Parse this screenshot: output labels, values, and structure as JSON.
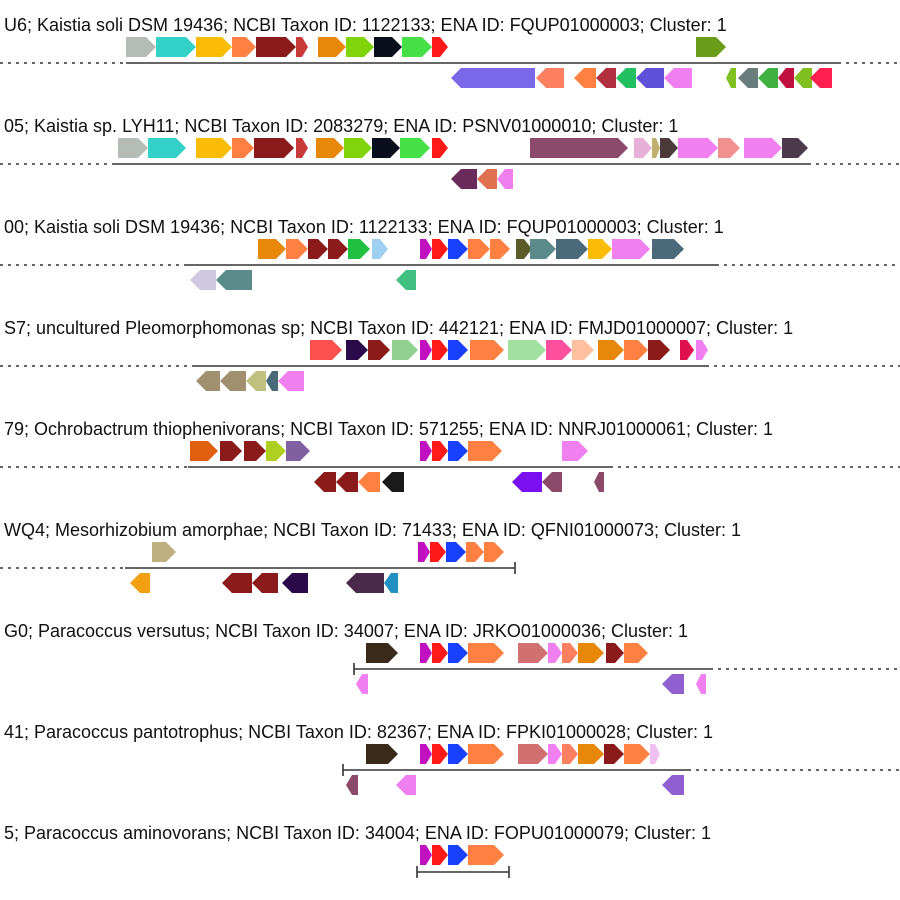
{
  "tracks": [
    {
      "label": "U6; Kaistia soli DSM 19436; NCBI Taxon ID: 1122133; ENA ID: FQUP01000003; Cluster: 1",
      "genes_top": [
        {
          "color": "#b5bcb5",
          "dir": "+",
          "label": ""
        },
        {
          "color": "#33d1c7",
          "dir": "+",
          "label": ""
        },
        {
          "color": "#fbbc05",
          "dir": "+",
          "label": ""
        },
        {
          "color": "#ff8040",
          "dir": "+",
          "label": ""
        },
        {
          "color": "#8b1a1a",
          "dir": "+",
          "label": ""
        },
        {
          "color": "#c83a3a",
          "dir": "+",
          "label": ""
        },
        {
          "color": "#e8880a",
          "dir": "+",
          "label": ""
        },
        {
          "color": "#7fd40a",
          "dir": "+",
          "label": ""
        },
        {
          "color": "#0a0f1e",
          "dir": "+",
          "label": ""
        },
        {
          "color": "#46e046",
          "dir": "+",
          "label": ""
        },
        {
          "color": "#ff1a1a",
          "dir": "+",
          "label": ""
        },
        {
          "color": "#6a9e1a",
          "dir": "+",
          "label": ""
        }
      ],
      "genes_bottom": [
        {
          "color": "#7a68e8",
          "dir": "-",
          "label": ""
        },
        {
          "color": "#ff8060",
          "dir": "-",
          "label": ""
        },
        {
          "color": "#ff8040",
          "dir": "-",
          "label": ""
        },
        {
          "color": "#b03040",
          "dir": "-",
          "label": ""
        },
        {
          "color": "#22c060",
          "dir": "-",
          "label": ""
        },
        {
          "color": "#6050d8",
          "dir": "-",
          "label": ""
        },
        {
          "color": "#f080f0",
          "dir": "-",
          "label": ""
        },
        {
          "color": "#80c020",
          "dir": "-",
          "label": ""
        },
        {
          "color": "#6a7d7d",
          "dir": "-",
          "label": ""
        },
        {
          "color": "#40b040",
          "dir": "-",
          "label": ""
        },
        {
          "color": "#c01040",
          "dir": "-",
          "label": ""
        },
        {
          "color": "#80c020",
          "dir": "-",
          "label": ""
        },
        {
          "color": "#ff2050",
          "dir": "-",
          "label": ""
        }
      ]
    },
    {
      "label": "05; Kaistia sp. LYH11; NCBI Taxon ID: 2083279; ENA ID: PSNV01000010; Cluster: 1",
      "genes_top": [
        {
          "color": "#b5bcb5",
          "dir": "+",
          "label": ""
        },
        {
          "color": "#33d1c7",
          "dir": "+",
          "label": ""
        },
        {
          "color": "#fbbc05",
          "dir": "+",
          "label": ""
        },
        {
          "color": "#ff8040",
          "dir": "+",
          "label": ""
        },
        {
          "color": "#8b1a1a",
          "dir": "+",
          "label": ""
        },
        {
          "color": "#c83a3a",
          "dir": "+",
          "label": ""
        },
        {
          "color": "#e8880a",
          "dir": "+",
          "label": ""
        },
        {
          "color": "#7fd40a",
          "dir": "+",
          "label": ""
        },
        {
          "color": "#0a0f1e",
          "dir": "+",
          "label": ""
        },
        {
          "color": "#46e046",
          "dir": "+",
          "label": ""
        },
        {
          "color": "#ff1a1a",
          "dir": "+",
          "label": ""
        },
        {
          "color": "#8b4a6a",
          "dir": "+",
          "label": ""
        },
        {
          "color": "#e8b0d8",
          "dir": "+",
          "label": ""
        },
        {
          "color": "#c0b070",
          "dir": "+",
          "label": ""
        },
        {
          "color": "#4a3a3a",
          "dir": "+",
          "label": ""
        },
        {
          "color": "#f080f0",
          "dir": "+",
          "label": ""
        },
        {
          "color": "#f09090",
          "dir": "+",
          "label": ""
        },
        {
          "color": "#f080f0",
          "dir": "+",
          "label": ""
        },
        {
          "color": "#4a3a4a",
          "dir": "+",
          "label": ""
        }
      ],
      "genes_bottom": [
        {
          "color": "#6a2a5a",
          "dir": "-",
          "label": ""
        },
        {
          "color": "#e07050",
          "dir": "-",
          "label": ""
        },
        {
          "color": "#f080f0",
          "dir": "-",
          "label": ""
        }
      ]
    },
    {
      "label": "00; Kaistia soli DSM 19436; NCBI Taxon ID: 1122133; ENA ID: FQUP01000003; Cluster: 1",
      "genes_top": [
        {
          "color": "#e8880a",
          "dir": "+",
          "label": ""
        },
        {
          "color": "#ff8040",
          "dir": "+",
          "label": ""
        },
        {
          "color": "#8b1a1a",
          "dir": "+",
          "label": ""
        },
        {
          "color": "#8b1a1a",
          "dir": "+",
          "label": ""
        },
        {
          "color": "#20c040",
          "dir": "+",
          "label": ""
        },
        {
          "color": "#a0d0f0",
          "dir": "+",
          "label": ""
        },
        {
          "color": "#c010c0",
          "dir": "+",
          "label": ""
        },
        {
          "color": "#ff1a1a",
          "dir": "+",
          "label": ""
        },
        {
          "color": "#1a40ff",
          "dir": "+",
          "label": ""
        },
        {
          "color": "#ff8040",
          "dir": "+",
          "label": ""
        },
        {
          "color": "#ff8040",
          "dir": "+",
          "label": ""
        },
        {
          "color": "#5a5a2a",
          "dir": "+",
          "label": ""
        },
        {
          "color": "#5a8a8a",
          "dir": "+",
          "label": ""
        },
        {
          "color": "#4a6a7a",
          "dir": "+",
          "label": ""
        },
        {
          "color": "#fbbc05",
          "dir": "+",
          "label": ""
        },
        {
          "color": "#f080f0",
          "dir": "+",
          "label": ""
        },
        {
          "color": "#4a6a7a",
          "dir": "+",
          "label": ""
        }
      ],
      "genes_bottom": [
        {
          "color": "#d0c8e0",
          "dir": "-",
          "label": ""
        },
        {
          "color": "#5a8a8a",
          "dir": "-",
          "label": ""
        },
        {
          "color": "#40c080",
          "dir": "-",
          "label": ""
        }
      ]
    },
    {
      "label": "S7; uncultured Pleomorphomonas sp; NCBI Taxon ID: 442121; ENA ID: FMJD01000007; Cluster: 1",
      "genes_top": [
        {
          "color": "#ff5050",
          "dir": "+",
          "label": ""
        },
        {
          "color": "#2a0a4a",
          "dir": "+",
          "label": ""
        },
        {
          "color": "#8b1a1a",
          "dir": "+",
          "label": ""
        },
        {
          "color": "#90d090",
          "dir": "+",
          "label": ""
        },
        {
          "color": "#c010c0",
          "dir": "+",
          "label": ""
        },
        {
          "color": "#ff1a1a",
          "dir": "+",
          "label": ""
        },
        {
          "color": "#1a40ff",
          "dir": "+",
          "label": ""
        },
        {
          "color": "#ff8040",
          "dir": "+",
          "label": ""
        },
        {
          "color": "#a0e0a0",
          "dir": "+",
          "label": ""
        },
        {
          "color": "#ff50a0",
          "dir": "+",
          "label": ""
        },
        {
          "color": "#ffc0a0",
          "dir": "+",
          "label": ""
        },
        {
          "color": "#e8880a",
          "dir": "+",
          "label": ""
        },
        {
          "color": "#ff8040",
          "dir": "+",
          "label": ""
        },
        {
          "color": "#8b1a1a",
          "dir": "+",
          "label": ""
        },
        {
          "color": "#e01050",
          "dir": "+",
          "label": ""
        },
        {
          "color": "#f080f0",
          "dir": "+",
          "label": ""
        }
      ],
      "genes_bottom": [
        {
          "color": "#a09070",
          "dir": "-",
          "label": ""
        },
        {
          "color": "#a09070",
          "dir": "-",
          "label": ""
        },
        {
          "color": "#c0c080",
          "dir": "-",
          "label": ""
        },
        {
          "color": "#4a6a7a",
          "dir": "-",
          "label": ""
        },
        {
          "color": "#f080f0",
          "dir": "-",
          "label": ""
        }
      ]
    },
    {
      "label": "79; Ochrobactrum thiophenivorans; NCBI Taxon ID: 571255; ENA ID: NNRJ01000061; Cluster: 1",
      "genes_top": [
        {
          "color": "#e06010",
          "dir": "+",
          "label": ""
        },
        {
          "color": "#8b1a1a",
          "dir": "+",
          "label": ""
        },
        {
          "color": "#8b1a1a",
          "dir": "+",
          "label": ""
        },
        {
          "color": "#b0d020",
          "dir": "+",
          "label": ""
        },
        {
          "color": "#8060a0",
          "dir": "+",
          "label": ""
        },
        {
          "color": "#c010c0",
          "dir": "+",
          "label": ""
        },
        {
          "color": "#ff1a1a",
          "dir": "+",
          "label": ""
        },
        {
          "color": "#1a40ff",
          "dir": "+",
          "label": ""
        },
        {
          "color": "#ff8040",
          "dir": "+",
          "label": ""
        },
        {
          "color": "#f080f0",
          "dir": "+",
          "label": ""
        }
      ],
      "genes_bottom": [
        {
          "color": "#8b1a1a",
          "dir": "-",
          "label": ""
        },
        {
          "color": "#8b1a1a",
          "dir": "-",
          "label": ""
        },
        {
          "color": "#ff8040",
          "dir": "-",
          "label": ""
        },
        {
          "color": "#1a1a1a",
          "dir": "-",
          "label": ""
        },
        {
          "color": "#7a10f0",
          "dir": "-",
          "label": ""
        },
        {
          "color": "#8b4a6a",
          "dir": "-",
          "label": ""
        },
        {
          "color": "#8b4a6a",
          "dir": "-",
          "label": ""
        }
      ]
    },
    {
      "label": "WQ4; Mesorhizobium amorphae; NCBI Taxon ID: 71433; ENA ID: QFNI01000073; Cluster: 1",
      "genes_top": [
        {
          "color": "#c0b080",
          "dir": "+",
          "label": ""
        },
        {
          "color": "#c010c0",
          "dir": "+",
          "label": ""
        },
        {
          "color": "#ff1a1a",
          "dir": "+",
          "label": ""
        },
        {
          "color": "#1a40ff",
          "dir": "+",
          "label": ""
        },
        {
          "color": "#ff8040",
          "dir": "+",
          "label": ""
        },
        {
          "color": "#ff8040",
          "dir": "+",
          "label": ""
        }
      ],
      "genes_bottom": [
        {
          "color": "#f0a010",
          "dir": "-",
          "label": ""
        },
        {
          "color": "#8b1a1a",
          "dir": "-",
          "label": ""
        },
        {
          "color": "#8b1a1a",
          "dir": "-",
          "label": ""
        },
        {
          "color": "#2a0a4a",
          "dir": "-",
          "label": ""
        },
        {
          "color": "#4a2a4a",
          "dir": "-",
          "label": ""
        },
        {
          "color": "#2090c0",
          "dir": "-",
          "label": ""
        }
      ]
    },
    {
      "label": "G0; Paracoccus versutus; NCBI Taxon ID: 34007; ENA ID: JRKO01000036; Cluster: 1",
      "genes_top": [
        {
          "color": "#3a2a1a",
          "dir": "+",
          "label": ""
        },
        {
          "color": "#c010c0",
          "dir": "+",
          "label": ""
        },
        {
          "color": "#ff1a1a",
          "dir": "+",
          "label": ""
        },
        {
          "color": "#1a40ff",
          "dir": "+",
          "label": ""
        },
        {
          "color": "#ff8040",
          "dir": "+",
          "label": ""
        },
        {
          "color": "#d07070",
          "dir": "+",
          "label": ""
        },
        {
          "color": "#f080f0",
          "dir": "+",
          "label": ""
        },
        {
          "color": "#ff8060",
          "dir": "+",
          "label": ""
        },
        {
          "color": "#e8880a",
          "dir": "+",
          "label": ""
        },
        {
          "color": "#8b1a1a",
          "dir": "+",
          "label": ""
        },
        {
          "color": "#ff8040",
          "dir": "+",
          "label": ""
        }
      ],
      "genes_bottom": [
        {
          "color": "#f080f0",
          "dir": "-",
          "label": ""
        },
        {
          "color": "#9060d0",
          "dir": "-",
          "label": ""
        },
        {
          "color": "#f080f0",
          "dir": "-",
          "label": ""
        }
      ]
    },
    {
      "label": "41; Paracoccus pantotrophus; NCBI Taxon ID: 82367; ENA ID: FPKI01000028; Cluster: 1",
      "genes_top": [
        {
          "color": "#3a2a1a",
          "dir": "+",
          "label": ""
        },
        {
          "color": "#c010c0",
          "dir": "+",
          "label": ""
        },
        {
          "color": "#ff1a1a",
          "dir": "+",
          "label": ""
        },
        {
          "color": "#1a40ff",
          "dir": "+",
          "label": ""
        },
        {
          "color": "#ff8040",
          "dir": "+",
          "label": ""
        },
        {
          "color": "#d07070",
          "dir": "+",
          "label": ""
        },
        {
          "color": "#f080f0",
          "dir": "+",
          "label": ""
        },
        {
          "color": "#ff8060",
          "dir": "+",
          "label": ""
        },
        {
          "color": "#e8880a",
          "dir": "+",
          "label": ""
        },
        {
          "color": "#8b1a1a",
          "dir": "+",
          "label": ""
        },
        {
          "color": "#ff8040",
          "dir": "+",
          "label": ""
        },
        {
          "color": "#f0c0f0",
          "dir": "+",
          "label": ""
        }
      ],
      "genes_bottom": [
        {
          "color": "#8b4a6a",
          "dir": "-",
          "label": ""
        },
        {
          "color": "#f080f0",
          "dir": "-",
          "label": ""
        },
        {
          "color": "#9060d0",
          "dir": "-",
          "label": ""
        }
      ]
    },
    {
      "label": "5; Paracoccus aminovorans; NCBI Taxon ID: 34004; ENA ID: FOPU01000079; Cluster: 1",
      "genes_top": [
        {
          "color": "#c010c0",
          "dir": "+",
          "label": ""
        },
        {
          "color": "#ff1a1a",
          "dir": "+",
          "label": ""
        },
        {
          "color": "#1a40ff",
          "dir": "+",
          "label": ""
        },
        {
          "color": "#ff8040",
          "dir": "+",
          "label": ""
        }
      ],
      "genes_bottom": []
    }
  ]
}
